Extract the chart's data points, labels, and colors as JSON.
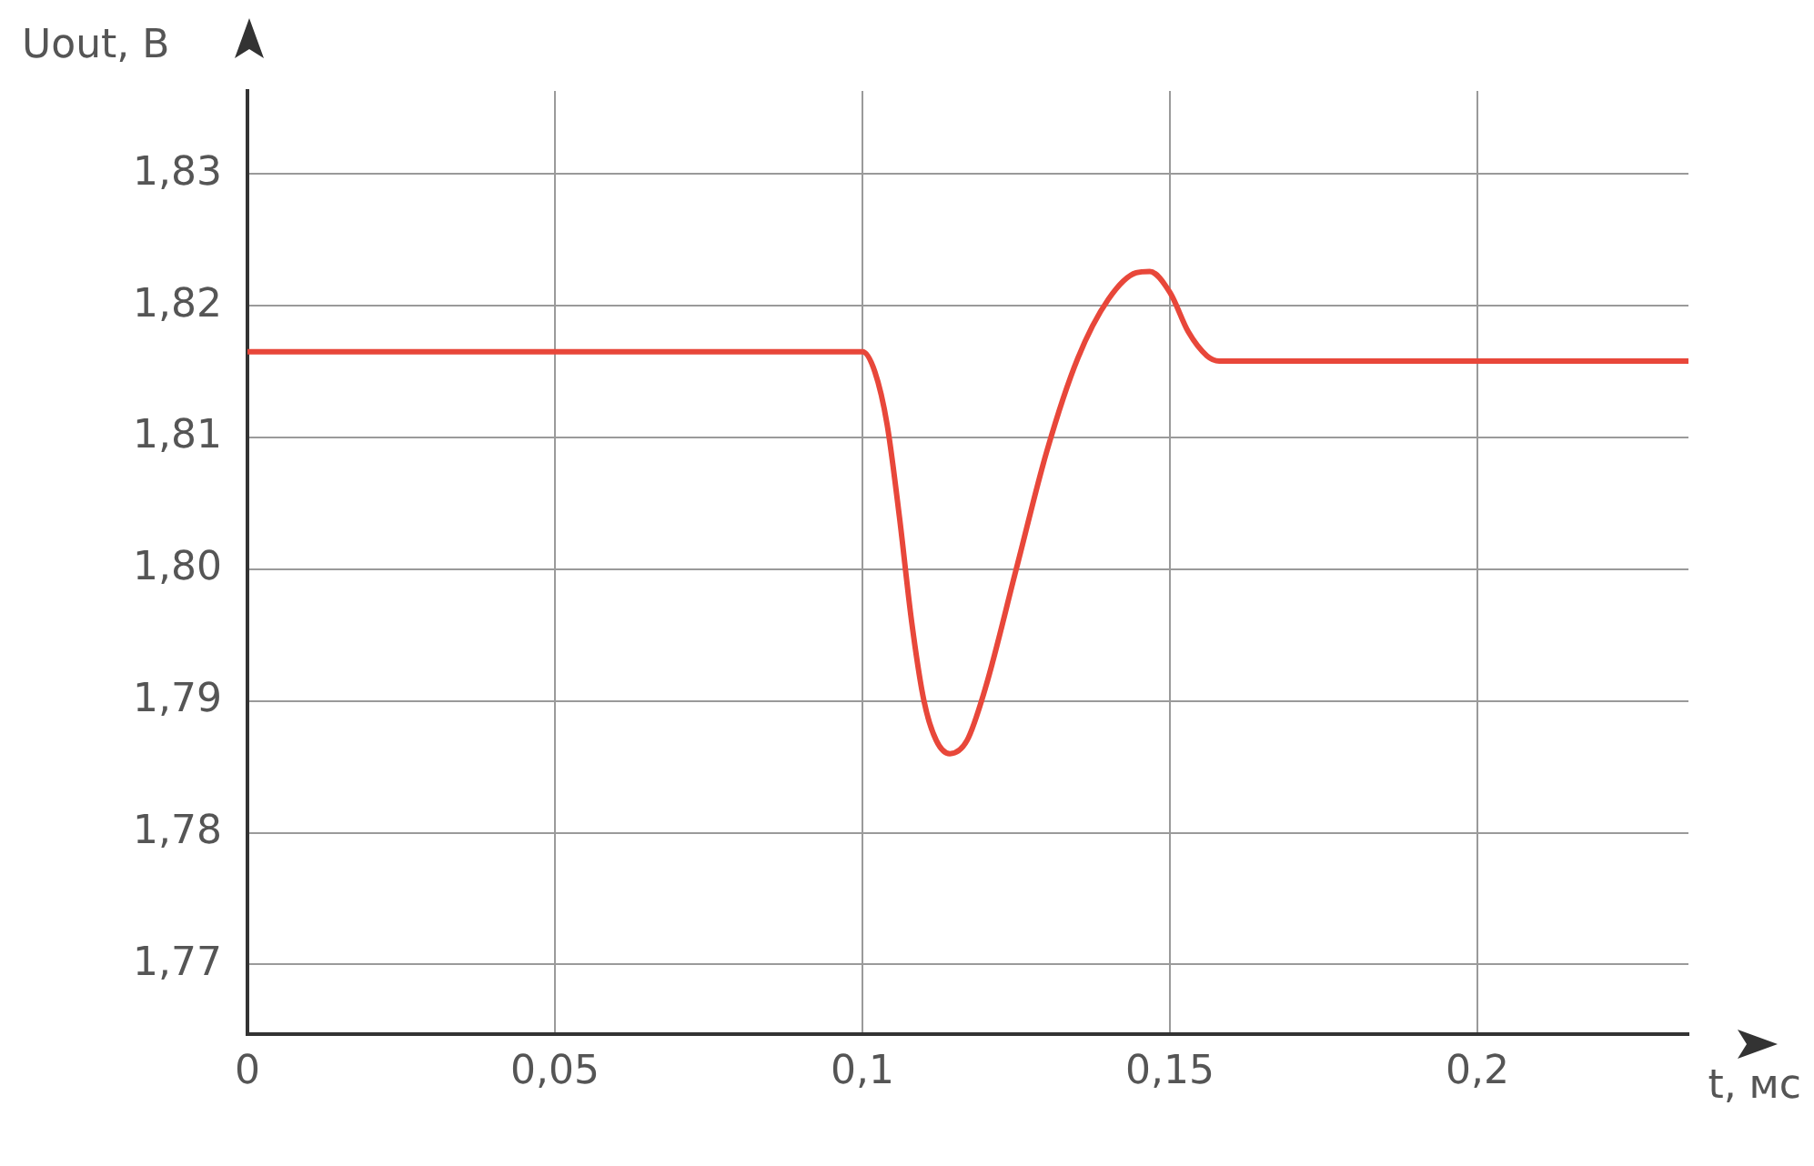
{
  "chart_data": {
    "type": "line",
    "xlabel": "t, мс",
    "ylabel": "Uout, В",
    "xlim": [
      0,
      0.2343
    ],
    "xticks": [
      0,
      {
        "value": 0.05,
        "label": "0,05"
      },
      {
        "value": 0.1,
        "label": "0,1"
      },
      {
        "value": 0.15,
        "label": "0,15"
      },
      {
        "value": 0.2,
        "label": "0,2"
      }
    ],
    "ylim": [
      1.7647,
      1.8363
    ],
    "yticks": [
      {
        "value": 1.77,
        "label": "1,77"
      },
      {
        "value": 1.78,
        "label": "1,78"
      },
      {
        "value": 1.79,
        "label": "1,79"
      },
      {
        "value": 1.8,
        "label": "1,80"
      },
      {
        "value": 1.81,
        "label": "1,81"
      },
      {
        "value": 1.82,
        "label": "1,82"
      },
      {
        "value": 1.83,
        "label": "1,83"
      }
    ],
    "grid": true,
    "legend": false,
    "marker": "none",
    "line_style": "solid",
    "series": [
      {
        "color": "#e8473a",
        "x": [
          0,
          0.1,
          0.102,
          0.104,
          0.106,
          0.108,
          0.11,
          0.112,
          0.1142,
          0.117,
          0.12,
          0.125,
          0.13,
          0.135,
          0.14,
          0.1445,
          0.1467,
          0.15,
          0.153,
          0.156,
          0.158,
          0.2343
        ],
        "values": [
          1.8165,
          1.8165,
          1.815,
          1.811,
          1.804,
          1.796,
          1.79,
          1.787,
          1.786,
          1.787,
          1.791,
          1.8,
          1.809,
          1.816,
          1.8205,
          1.8225,
          1.8226,
          1.821,
          1.818,
          1.8162,
          1.8158,
          1.8158
        ]
      }
    ]
  }
}
